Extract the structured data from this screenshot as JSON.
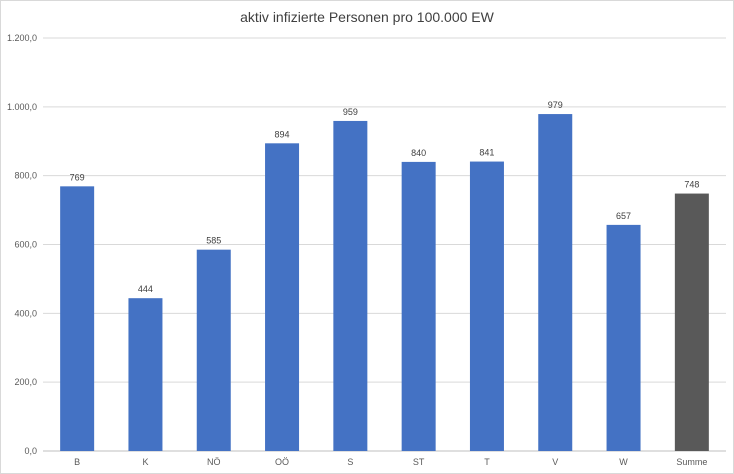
{
  "chart_data": {
    "type": "bar",
    "title": "aktiv infizierte Personen pro 100.000 EW",
    "xlabel": "",
    "ylabel": "",
    "categories": [
      "B",
      "K",
      "NÖ",
      "OÖ",
      "S",
      "ST",
      "T",
      "V",
      "W",
      "Summe"
    ],
    "values": [
      769,
      444,
      585,
      894,
      959,
      840,
      841,
      979,
      657,
      748
    ],
    "data_labels": [
      "769",
      "444",
      "585",
      "894",
      "959",
      "840",
      "841",
      "979",
      "657",
      "748"
    ],
    "ylim": [
      0,
      1200
    ],
    "y_ticks": [
      0,
      200,
      400,
      600,
      800,
      1000,
      1200
    ],
    "y_tick_labels": [
      "0,0",
      "200,0",
      "400,0",
      "600,0",
      "800,0",
      "1.000,0",
      "1.200,0"
    ],
    "grid": true,
    "legend": "none",
    "colors": {
      "bar": "#4472c4",
      "total_bar": "#595959",
      "gridline": "#d9d9d9"
    },
    "bar_colors": [
      "#4472c4",
      "#4472c4",
      "#4472c4",
      "#4472c4",
      "#4472c4",
      "#4472c4",
      "#4472c4",
      "#4472c4",
      "#4472c4",
      "#595959"
    ]
  }
}
